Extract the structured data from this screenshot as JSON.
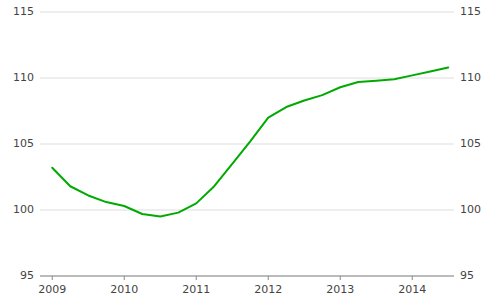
{
  "chart_data": {
    "type": "line",
    "x": [
      2009.0,
      2009.25,
      2009.5,
      2009.75,
      2010.0,
      2010.25,
      2010.5,
      2010.75,
      2011.0,
      2011.25,
      2011.5,
      2011.75,
      2012.0,
      2012.25,
      2012.5,
      2012.75,
      2013.0,
      2013.25,
      2013.5,
      2013.75,
      2014.0,
      2014.25,
      2014.5
    ],
    "values": [
      103.2,
      101.8,
      101.1,
      100.6,
      100.3,
      99.7,
      99.5,
      99.8,
      100.5,
      101.8,
      103.5,
      105.2,
      107.0,
      107.8,
      108.3,
      108.7,
      109.3,
      109.7,
      109.8,
      109.9,
      110.2,
      110.5,
      110.8
    ],
    "color": "#00aa00",
    "xlim": [
      2008.83,
      2014.58
    ],
    "xticks": [
      2009,
      2010,
      2011,
      2012,
      2013,
      2014
    ],
    "ylim": [
      95,
      115
    ],
    "yticks": [
      95,
      100,
      105,
      110,
      115
    ],
    "y2lim": [
      95,
      115
    ],
    "y2ticks": [
      95,
      100,
      105,
      110,
      115
    ],
    "grid": true
  }
}
